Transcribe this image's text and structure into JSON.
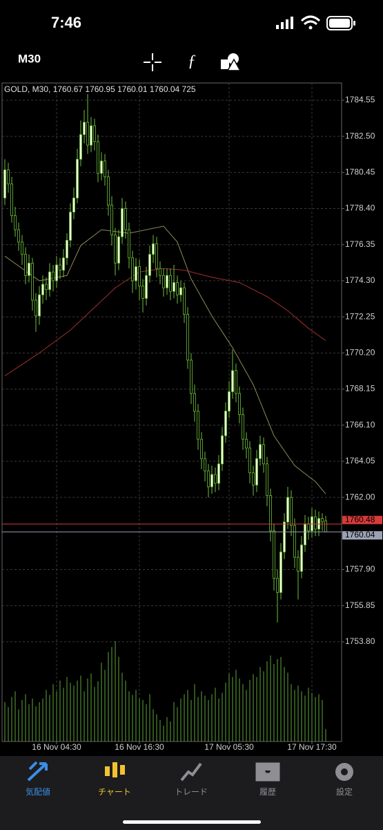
{
  "status_bar": {
    "time": "7:46"
  },
  "toolbar": {
    "timeframe": "M30"
  },
  "tabs": [
    {
      "label": "気配値",
      "color": "#3a8ee6"
    },
    {
      "label": "チャート",
      "color": "#f2c230"
    },
    {
      "label": "トレード",
      "color": "#8e8e93"
    },
    {
      "label": "履歴",
      "color": "#8e8e93"
    },
    {
      "label": "設定",
      "color": "#8e8e93"
    }
  ],
  "chart_data": {
    "type": "candlestick",
    "title": "GOLD, M30, 1760.67 1760.95 1760.01 1760.04 725",
    "up_color": "#eef8dc",
    "down_color": "#000000",
    "wick_color": "#6fbf3a",
    "volume_color": "#5fa83a",
    "grid": true,
    "ylim": [
      1748.14,
      1785.53
    ],
    "yticks": [
      {
        "value": 1784.55,
        "label": "1784.55"
      },
      {
        "value": 1782.5,
        "label": "1782.50"
      },
      {
        "value": 1780.45,
        "label": "1780.45"
      },
      {
        "value": 1778.4,
        "label": "1778.40"
      },
      {
        "value": 1776.35,
        "label": "1776.35"
      },
      {
        "value": 1774.3,
        "label": "1774.30"
      },
      {
        "value": 1772.25,
        "label": "1772.25"
      },
      {
        "value": 1770.2,
        "label": "1770.20"
      },
      {
        "value": 1768.15,
        "label": "1768.15"
      },
      {
        "value": 1766.1,
        "label": "1766.10"
      },
      {
        "value": 1764.05,
        "label": "1764.05"
      },
      {
        "value": 1762,
        "label": "1762.00"
      },
      {
        "value": 1757.9,
        "label": "1757.90"
      },
      {
        "value": 1755.85,
        "label": "1755.85"
      },
      {
        "value": 1753.8,
        "label": "1753.80"
      }
    ],
    "xticks": [
      {
        "value": 15,
        "label": "16 Nov 04:30"
      },
      {
        "value": 39,
        "label": "16 Nov 16:30"
      },
      {
        "value": 65,
        "label": "17 Nov 05:30"
      },
      {
        "value": 89,
        "label": "17 Nov 17:30"
      }
    ],
    "price_lines": [
      {
        "value": 1760.48,
        "color": "#d83a3a"
      },
      {
        "value": 1760.04,
        "color": "#9aa3b5"
      }
    ],
    "open": [
      1779.0,
      1780.6,
      1779.8,
      1778.0,
      1777.2,
      1776.5,
      1775.8,
      1774.6,
      1775.3,
      1773.2,
      1772.3,
      1773.5,
      1774.1,
      1773.8,
      1774.8,
      1774.3,
      1775.2,
      1774.9,
      1775.6,
      1776.6,
      1778.2,
      1779.0,
      1781.2,
      1782.6,
      1783.3,
      1782.0,
      1783.1,
      1782.2,
      1780.4,
      1781.1,
      1780.2,
      1778.6,
      1776.9,
      1775.3,
      1776.8,
      1778.4,
      1777.2,
      1775.6,
      1774.3,
      1775.1,
      1774.0,
      1773.3,
      1774.6,
      1775.8,
      1776.4,
      1775.0,
      1774.6,
      1773.9,
      1774.6,
      1773.7,
      1774.2,
      1773.5,
      1773.9,
      1772.4,
      1769.8,
      1767.9,
      1766.9,
      1765.3,
      1764.2,
      1763.5,
      1762.6,
      1763.3,
      1762.8,
      1763.9,
      1765.5,
      1766.9,
      1768.0,
      1769.2,
      1767.9,
      1766.7,
      1765.3,
      1764.8,
      1763.4,
      1762.7,
      1764.2,
      1765.0,
      1763.9,
      1762.1,
      1760.1,
      1757.4,
      1756.6,
      1758.9,
      1760.6,
      1762.0,
      1760.4,
      1758.6,
      1757.8,
      1759.3,
      1760.5,
      1760.1,
      1760.9,
      1760.2,
      1760.8,
      1760.67
    ],
    "high": [
      1781.2,
      1781.0,
      1780.2,
      1778.5,
      1777.6,
      1776.9,
      1776.2,
      1775.8,
      1775.6,
      1773.6,
      1774.0,
      1774.6,
      1774.5,
      1775.3,
      1775.2,
      1775.7,
      1775.6,
      1776.1,
      1777.0,
      1778.7,
      1779.6,
      1781.8,
      1783.4,
      1784.0,
      1784.9,
      1783.6,
      1783.5,
      1782.6,
      1781.6,
      1781.5,
      1780.6,
      1779.1,
      1777.3,
      1777.2,
      1779.0,
      1778.8,
      1777.6,
      1776.0,
      1775.6,
      1775.5,
      1774.4,
      1775.1,
      1776.3,
      1776.9,
      1776.8,
      1775.4,
      1775.0,
      1775.0,
      1775.0,
      1775.2,
      1774.6,
      1774.3,
      1774.2,
      1772.8,
      1770.2,
      1768.4,
      1767.3,
      1765.7,
      1764.6,
      1763.9,
      1763.8,
      1763.7,
      1764.4,
      1766.0,
      1767.4,
      1768.6,
      1770.4,
      1769.6,
      1768.3,
      1767.1,
      1765.7,
      1765.2,
      1763.8,
      1764.7,
      1765.5,
      1765.4,
      1764.3,
      1762.5,
      1760.5,
      1757.9,
      1759.4,
      1761.1,
      1762.6,
      1762.4,
      1760.8,
      1759.0,
      1759.8,
      1761.0,
      1760.9,
      1761.4,
      1761.3,
      1761.2,
      1761.1,
      1760.95
    ],
    "low": [
      1778.6,
      1779.3,
      1777.6,
      1776.8,
      1776.0,
      1775.2,
      1774.1,
      1774.2,
      1772.6,
      1771.4,
      1771.8,
      1773.0,
      1773.2,
      1773.4,
      1773.7,
      1773.9,
      1774.4,
      1774.5,
      1775.2,
      1776.2,
      1777.8,
      1778.7,
      1780.8,
      1782.1,
      1781.5,
      1781.6,
      1781.7,
      1779.9,
      1780.0,
      1779.7,
      1778.0,
      1776.3,
      1774.6,
      1774.9,
      1776.4,
      1776.7,
      1775.0,
      1773.6,
      1773.8,
      1773.2,
      1772.5,
      1772.9,
      1774.2,
      1775.3,
      1774.5,
      1774.1,
      1773.4,
      1773.5,
      1773.2,
      1773.3,
      1773.0,
      1773.1,
      1771.9,
      1769.3,
      1767.3,
      1766.3,
      1764.7,
      1763.6,
      1762.9,
      1762.0,
      1762.2,
      1762.3,
      1762.4,
      1763.5,
      1765.1,
      1766.5,
      1767.6,
      1767.4,
      1766.2,
      1764.7,
      1764.2,
      1762.8,
      1762.1,
      1762.3,
      1763.8,
      1763.4,
      1761.5,
      1759.5,
      1756.7,
      1754.9,
      1756.2,
      1758.5,
      1760.2,
      1759.8,
      1758.0,
      1756.2,
      1757.4,
      1758.9,
      1759.6,
      1759.7,
      1759.8,
      1759.8,
      1760.1,
      1760.01
    ],
    "close": [
      1780.6,
      1779.8,
      1778.0,
      1777.2,
      1776.5,
      1775.8,
      1774.6,
      1775.3,
      1773.2,
      1772.3,
      1773.5,
      1774.1,
      1773.8,
      1774.8,
      1774.3,
      1775.2,
      1774.9,
      1775.6,
      1776.6,
      1778.2,
      1779.0,
      1781.2,
      1782.6,
      1783.3,
      1782.0,
      1783.1,
      1782.2,
      1780.4,
      1781.1,
      1780.2,
      1778.6,
      1776.9,
      1775.3,
      1776.8,
      1778.4,
      1777.2,
      1775.6,
      1774.3,
      1775.1,
      1774.0,
      1773.3,
      1774.6,
      1775.8,
      1776.4,
      1775.0,
      1774.6,
      1773.9,
      1774.6,
      1773.7,
      1774.2,
      1773.5,
      1773.9,
      1772.4,
      1769.8,
      1767.9,
      1766.9,
      1765.3,
      1764.2,
      1763.5,
      1762.6,
      1763.3,
      1762.8,
      1763.9,
      1765.5,
      1766.9,
      1768.0,
      1769.2,
      1767.9,
      1766.7,
      1765.3,
      1764.8,
      1763.4,
      1762.7,
      1764.2,
      1765.0,
      1763.9,
      1762.1,
      1760.1,
      1757.4,
      1756.6,
      1758.9,
      1760.6,
      1762.0,
      1760.4,
      1758.6,
      1757.8,
      1759.3,
      1760.5,
      1760.1,
      1760.9,
      1760.2,
      1760.8,
      1760.6,
      1760.04
    ],
    "volume": [
      2310,
      2016,
      2604,
      2940,
      1890,
      2436,
      2772,
      2184,
      2520,
      2058,
      2310,
      2520,
      3024,
      2730,
      3360,
      2940,
      3570,
      3150,
      3780,
      3444,
      3276,
      3570,
      3864,
      2940,
      3696,
      3990,
      3192,
      3528,
      4620,
      4200,
      5250,
      5544,
      5880,
      4956,
      4032,
      3570,
      2940,
      2730,
      3024,
      2520,
      2436,
      2184,
      2772,
      1890,
      1596,
      1260,
      924,
      1428,
      1176,
      2310,
      2016,
      2520,
      2772,
      3024,
      2436,
      3360,
      2604,
      2940,
      2688,
      2436,
      2772,
      3150,
      2520,
      2856,
      3444,
      3990,
      3780,
      4200,
      3696,
      3360,
      3024,
      3612,
      3948,
      3780,
      4368,
      4116,
      4704,
      5040,
      4536,
      4830,
      4956,
      4368,
      4032,
      3360,
      3024,
      3276,
      2940,
      2688,
      3150,
      2856,
      2604,
      2772,
      2436,
      725
    ],
    "moving_averages": [
      {
        "color": "#8c8c58",
        "x": [
          0,
          10,
          18,
          22,
          28,
          36,
          46,
          50,
          54,
          60,
          66,
          72,
          78,
          84,
          90,
          93
        ],
        "values": [
          1775.7,
          1774.3,
          1774.6,
          1776.3,
          1777.2,
          1777.0,
          1777.4,
          1776.5,
          1774.4,
          1772.3,
          1770.5,
          1768.4,
          1765.5,
          1763.8,
          1762.9,
          1762.2
        ]
      },
      {
        "color": "#a03030",
        "x": [
          0,
          10,
          19,
          25,
          32,
          39,
          46,
          52,
          60,
          68,
          76,
          82,
          88,
          93
        ],
        "values": [
          1768.9,
          1770.2,
          1771.5,
          1772.6,
          1773.9,
          1774.8,
          1775.0,
          1774.9,
          1774.5,
          1774.2,
          1773.4,
          1772.6,
          1771.6,
          1770.9
        ]
      }
    ]
  }
}
